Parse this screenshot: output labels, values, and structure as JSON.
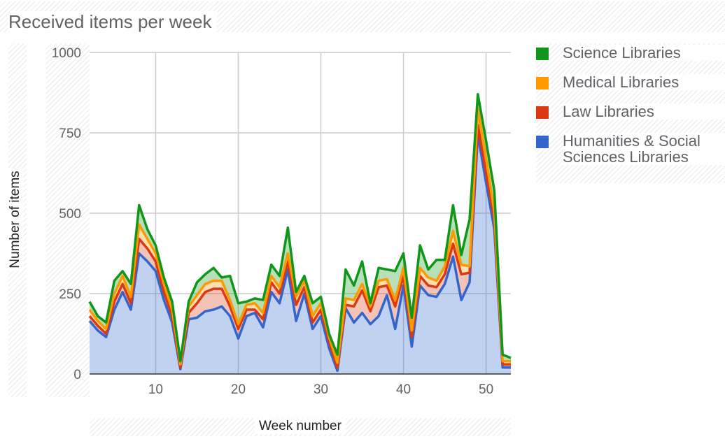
{
  "title": "Received items per week",
  "chart_data": {
    "type": "area",
    "stacked": true,
    "title": "Received items per week",
    "xlabel": "Week number",
    "ylabel": "Number of items",
    "x": [
      2,
      3,
      4,
      5,
      6,
      7,
      8,
      9,
      10,
      11,
      12,
      13,
      14,
      15,
      16,
      17,
      18,
      19,
      20,
      21,
      22,
      23,
      24,
      25,
      26,
      27,
      28,
      29,
      30,
      31,
      32,
      33,
      34,
      35,
      36,
      37,
      38,
      39,
      40,
      41,
      42,
      43,
      44,
      45,
      46,
      47,
      48,
      49,
      50,
      51,
      52,
      53
    ],
    "xlim": [
      2,
      53
    ],
    "ylim": [
      0,
      1000
    ],
    "xticks": [
      10,
      20,
      30,
      40,
      50
    ],
    "yticks": [
      0,
      250,
      500,
      750,
      1000
    ],
    "grid": true,
    "legend_position": "right",
    "series": [
      {
        "name": "Humanities & Social Sciences Libraries",
        "color": "#3366cc",
        "values": [
          165,
          135,
          115,
          200,
          255,
          200,
          375,
          350,
          320,
          230,
          160,
          15,
          170,
          175,
          195,
          200,
          210,
          180,
          110,
          180,
          190,
          145,
          255,
          220,
          325,
          165,
          250,
          140,
          180,
          80,
          10,
          205,
          160,
          190,
          155,
          180,
          245,
          140,
          275,
          85,
          275,
          245,
          240,
          280,
          365,
          230,
          285,
          745,
          595,
          450,
          20,
          20
        ]
      },
      {
        "name": "Law Libraries",
        "color": "#dc3912",
        "values": [
          15,
          15,
          10,
          25,
          25,
          20,
          45,
          40,
          30,
          25,
          20,
          5,
          20,
          45,
          60,
          65,
          55,
          30,
          30,
          20,
          10,
          25,
          30,
          30,
          25,
          50,
          20,
          20,
          20,
          20,
          10,
          10,
          50,
          70,
          40,
          90,
          30,
          70,
          30,
          30,
          30,
          30,
          30,
          30,
          40,
          80,
          30,
          30,
          30,
          30,
          10,
          10
        ]
      },
      {
        "name": "Medical Libraries",
        "color": "#ff9900",
        "values": [
          20,
          15,
          15,
          25,
          25,
          20,
          45,
          30,
          25,
          25,
          20,
          10,
          20,
          25,
          25,
          25,
          25,
          20,
          15,
          15,
          20,
          20,
          20,
          20,
          25,
          25,
          20,
          20,
          20,
          15,
          15,
          20,
          20,
          20,
          15,
          20,
          20,
          20,
          25,
          20,
          25,
          25,
          20,
          25,
          40,
          30,
          20,
          50,
          45,
          25,
          10,
          10
        ]
      },
      {
        "name": "Science Libraries",
        "color": "#109618",
        "values": [
          25,
          15,
          20,
          40,
          15,
          40,
          60,
          30,
          25,
          20,
          25,
          10,
          15,
          40,
          30,
          40,
          10,
          75,
          65,
          10,
          15,
          40,
          35,
          35,
          80,
          15,
          15,
          40,
          20,
          10,
          25,
          90,
          45,
          70,
          10,
          40,
          30,
          90,
          45,
          40,
          70,
          25,
          65,
          20,
          80,
          30,
          145,
          45,
          55,
          65,
          20,
          10
        ]
      }
    ]
  }
}
